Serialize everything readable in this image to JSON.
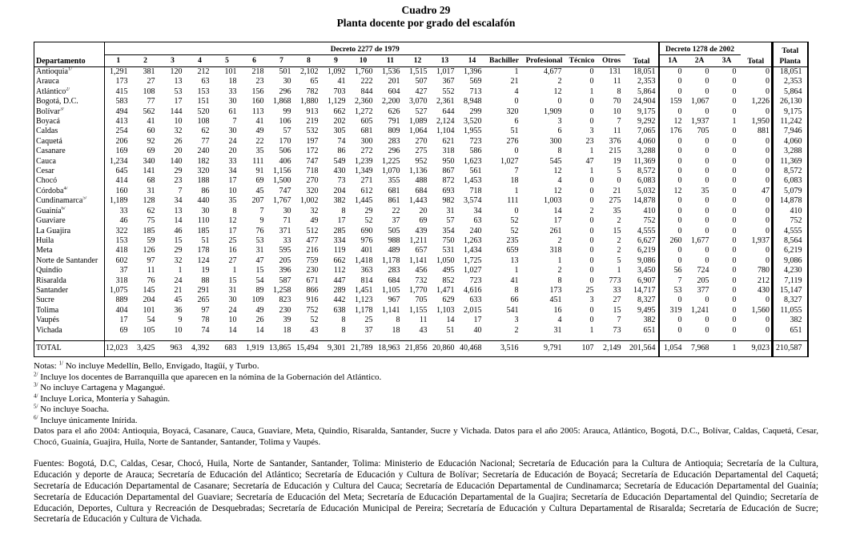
{
  "title": "Cuadro 29",
  "subtitle": "Planta docente por grado del escalafón",
  "table": {
    "group_1979": "Decreto 2277 de 1979",
    "group_2002": "Decreto 1278 de 2002",
    "headers": {
      "departamento": "Departamento",
      "total_1979": "Total",
      "total_2002": "Total",
      "total_planta_line1": "Total",
      "total_planta_line2": "Planta"
    },
    "columns_1979": [
      "1",
      "2",
      "3",
      "4",
      "5",
      "6",
      "7",
      "8",
      "9",
      "10",
      "11",
      "12",
      "13",
      "14",
      "Bachiller",
      "Profesional",
      "Técnico",
      "Otros"
    ],
    "columns_2002": [
      "1A",
      "2A",
      "3A"
    ],
    "rows": [
      {
        "name": "Antioquia",
        "sup": "1/",
        "values": [
          "1,291",
          "381",
          "120",
          "212",
          "101",
          "218",
          "501",
          "2,102",
          "1,092",
          "1,760",
          "1,536",
          "1,515",
          "1,017",
          "1,396",
          "1",
          "4,677",
          "0",
          "131",
          "18,051",
          "0",
          "0",
          "0",
          "0",
          "18,051"
        ]
      },
      {
        "name": "Arauca",
        "sup": "",
        "values": [
          "173",
          "27",
          "13",
          "63",
          "18",
          "23",
          "30",
          "65",
          "41",
          "222",
          "201",
          "507",
          "367",
          "569",
          "21",
          "2",
          "0",
          "11",
          "2,353",
          "0",
          "0",
          "0",
          "0",
          "2,353"
        ]
      },
      {
        "name": "Atlántico",
        "sup": "2/",
        "values": [
          "415",
          "108",
          "53",
          "153",
          "33",
          "156",
          "296",
          "782",
          "703",
          "844",
          "604",
          "427",
          "552",
          "713",
          "4",
          "12",
          "1",
          "8",
          "5,864",
          "0",
          "0",
          "0",
          "0",
          "5,864"
        ]
      },
      {
        "name": "Bogotá, D.C.",
        "sup": "",
        "values": [
          "583",
          "77",
          "17",
          "151",
          "30",
          "160",
          "1,868",
          "1,880",
          "1,129",
          "2,360",
          "2,200",
          "3,070",
          "2,361",
          "8,948",
          "0",
          "0",
          "0",
          "70",
          "24,904",
          "159",
          "1,067",
          "0",
          "1,226",
          "26,130"
        ]
      },
      {
        "name": "Bolívar",
        "sup": "3/",
        "values": [
          "494",
          "562",
          "144",
          "520",
          "61",
          "113",
          "99",
          "913",
          "662",
          "1,272",
          "626",
          "527",
          "644",
          "299",
          "320",
          "1,909",
          "0",
          "10",
          "9,175",
          "0",
          "0",
          "0",
          "0",
          "9,175"
        ]
      },
      {
        "name": "Boyacá",
        "sup": "",
        "values": [
          "413",
          "41",
          "10",
          "108",
          "7",
          "41",
          "106",
          "219",
          "202",
          "605",
          "791",
          "1,089",
          "2,124",
          "3,520",
          "6",
          "3",
          "0",
          "7",
          "9,292",
          "12",
          "1,937",
          "1",
          "1,950",
          "11,242"
        ]
      },
      {
        "name": "Caldas",
        "sup": "",
        "values": [
          "254",
          "60",
          "32",
          "62",
          "30",
          "49",
          "57",
          "532",
          "305",
          "681",
          "809",
          "1,064",
          "1,104",
          "1,955",
          "51",
          "6",
          "3",
          "11",
          "7,065",
          "176",
          "705",
          "0",
          "881",
          "7,946"
        ]
      },
      {
        "name": "Caquetá",
        "sup": "",
        "values": [
          "206",
          "92",
          "26",
          "77",
          "24",
          "22",
          "170",
          "197",
          "74",
          "300",
          "283",
          "270",
          "621",
          "723",
          "276",
          "300",
          "23",
          "376",
          "4,060",
          "0",
          "0",
          "0",
          "0",
          "4,060"
        ]
      },
      {
        "name": "Casanare",
        "sup": "",
        "values": [
          "169",
          "69",
          "20",
          "240",
          "20",
          "35",
          "506",
          "172",
          "86",
          "272",
          "296",
          "275",
          "318",
          "586",
          "0",
          "8",
          "1",
          "215",
          "3,288",
          "0",
          "0",
          "0",
          "0",
          "3,288"
        ]
      },
      {
        "name": "Cauca",
        "sup": "",
        "values": [
          "1,234",
          "340",
          "140",
          "182",
          "33",
          "111",
          "406",
          "747",
          "549",
          "1,239",
          "1,225",
          "952",
          "950",
          "1,623",
          "1,027",
          "545",
          "47",
          "19",
          "11,369",
          "0",
          "0",
          "0",
          "0",
          "11,369"
        ]
      },
      {
        "name": "Cesar",
        "sup": "",
        "values": [
          "645",
          "141",
          "29",
          "320",
          "34",
          "91",
          "1,156",
          "718",
          "430",
          "1,349",
          "1,070",
          "1,136",
          "867",
          "561",
          "7",
          "12",
          "1",
          "5",
          "8,572",
          "0",
          "0",
          "0",
          "0",
          "8,572"
        ]
      },
      {
        "name": "Chocó",
        "sup": "",
        "values": [
          "414",
          "68",
          "23",
          "188",
          "17",
          "69",
          "1,500",
          "270",
          "73",
          "271",
          "355",
          "488",
          "872",
          "1,453",
          "18",
          "4",
          "0",
          "0",
          "6,083",
          "0",
          "0",
          "0",
          "0",
          "6,083"
        ]
      },
      {
        "name": "Córdoba",
        "sup": "4/",
        "values": [
          "160",
          "31",
          "7",
          "86",
          "10",
          "45",
          "747",
          "320",
          "204",
          "612",
          "681",
          "684",
          "693",
          "718",
          "1",
          "12",
          "0",
          "21",
          "5,032",
          "12",
          "35",
          "0",
          "47",
          "5,079"
        ]
      },
      {
        "name": "Cundinamarca",
        "sup": "5/",
        "values": [
          "1,189",
          "128",
          "34",
          "440",
          "35",
          "207",
          "1,767",
          "1,002",
          "382",
          "1,445",
          "861",
          "1,443",
          "982",
          "3,574",
          "111",
          "1,003",
          "0",
          "275",
          "14,878",
          "0",
          "0",
          "0",
          "0",
          "14,878"
        ]
      },
      {
        "name": "Guainía",
        "sup": "6/",
        "values": [
          "33",
          "62",
          "13",
          "30",
          "8",
          "7",
          "30",
          "32",
          "8",
          "29",
          "22",
          "20",
          "31",
          "34",
          "0",
          "14",
          "2",
          "35",
          "410",
          "0",
          "0",
          "0",
          "0",
          "410"
        ]
      },
      {
        "name": "Guaviare",
        "sup": "",
        "values": [
          "46",
          "75",
          "14",
          "110",
          "12",
          "9",
          "71",
          "49",
          "17",
          "52",
          "37",
          "69",
          "57",
          "63",
          "52",
          "17",
          "0",
          "2",
          "752",
          "0",
          "0",
          "0",
          "0",
          "752"
        ]
      },
      {
        "name": "La Guajira",
        "sup": "",
        "values": [
          "322",
          "185",
          "46",
          "185",
          "17",
          "76",
          "371",
          "512",
          "285",
          "690",
          "505",
          "439",
          "354",
          "240",
          "52",
          "261",
          "0",
          "15",
          "4,555",
          "0",
          "0",
          "0",
          "0",
          "4,555"
        ]
      },
      {
        "name": "Huila",
        "sup": "",
        "values": [
          "153",
          "59",
          "15",
          "51",
          "25",
          "53",
          "33",
          "477",
          "334",
          "976",
          "988",
          "1,211",
          "750",
          "1,263",
          "235",
          "2",
          "0",
          "2",
          "6,627",
          "260",
          "1,677",
          "0",
          "1,937",
          "8,564"
        ]
      },
      {
        "name": "Meta",
        "sup": "",
        "values": [
          "418",
          "126",
          "29",
          "178",
          "16",
          "31",
          "595",
          "216",
          "119",
          "401",
          "489",
          "657",
          "531",
          "1,434",
          "659",
          "318",
          "0",
          "2",
          "6,219",
          "0",
          "0",
          "0",
          "0",
          "6,219"
        ]
      },
      {
        "name": "Norte de Santander",
        "sup": "",
        "values": [
          "602",
          "97",
          "32",
          "124",
          "27",
          "47",
          "205",
          "759",
          "662",
          "1,418",
          "1,178",
          "1,141",
          "1,050",
          "1,725",
          "13",
          "1",
          "0",
          "5",
          "9,086",
          "0",
          "0",
          "0",
          "0",
          "9,086"
        ]
      },
      {
        "name": "Quindío",
        "sup": "",
        "values": [
          "37",
          "11",
          "1",
          "19",
          "1",
          "15",
          "396",
          "230",
          "112",
          "363",
          "283",
          "456",
          "495",
          "1,027",
          "1",
          "2",
          "0",
          "1",
          "3,450",
          "56",
          "724",
          "0",
          "780",
          "4,230"
        ]
      },
      {
        "name": "Risaralda",
        "sup": "",
        "values": [
          "318",
          "76",
          "24",
          "88",
          "15",
          "54",
          "587",
          "671",
          "447",
          "814",
          "684",
          "732",
          "852",
          "723",
          "41",
          "8",
          "0",
          "773",
          "6,907",
          "7",
          "205",
          "0",
          "212",
          "7,119"
        ]
      },
      {
        "name": "Santander",
        "sup": "",
        "values": [
          "1,075",
          "145",
          "21",
          "291",
          "31",
          "89",
          "1,258",
          "866",
          "289",
          "1,451",
          "1,105",
          "1,770",
          "1,471",
          "4,616",
          "8",
          "173",
          "25",
          "33",
          "14,717",
          "53",
          "377",
          "0",
          "430",
          "15,147"
        ]
      },
      {
        "name": "Sucre",
        "sup": "",
        "values": [
          "889",
          "204",
          "45",
          "265",
          "30",
          "109",
          "823",
          "916",
          "442",
          "1,123",
          "967",
          "705",
          "629",
          "633",
          "66",
          "451",
          "3",
          "27",
          "8,327",
          "0",
          "0",
          "0",
          "0",
          "8,327"
        ]
      },
      {
        "name": "Tolima",
        "sup": "",
        "values": [
          "404",
          "101",
          "36",
          "97",
          "24",
          "49",
          "230",
          "752",
          "638",
          "1,178",
          "1,141",
          "1,155",
          "1,103",
          "2,015",
          "541",
          "16",
          "0",
          "15",
          "9,495",
          "319",
          "1,241",
          "0",
          "1,560",
          "11,055"
        ]
      },
      {
        "name": "Vaupés",
        "sup": "",
        "values": [
          "17",
          "54",
          "9",
          "78",
          "10",
          "26",
          "39",
          "52",
          "8",
          "25",
          "8",
          "11",
          "14",
          "17",
          "3",
          "4",
          "0",
          "7",
          "382",
          "0",
          "0",
          "0",
          "0",
          "382"
        ]
      },
      {
        "name": "Vichada",
        "sup": "",
        "values": [
          "69",
          "105",
          "10",
          "74",
          "14",
          "14",
          "18",
          "43",
          "8",
          "37",
          "18",
          "43",
          "51",
          "40",
          "2",
          "31",
          "1",
          "73",
          "651",
          "0",
          "0",
          "0",
          "0",
          "651"
        ]
      }
    ],
    "total_row": {
      "name": "TOTAL",
      "values": [
        "12,023",
        "3,425",
        "963",
        "4,392",
        "683",
        "1,919",
        "13,865",
        "15,494",
        "9,301",
        "21,789",
        "18,963",
        "21,856",
        "20,860",
        "40,468",
        "3,516",
        "9,791",
        "107",
        "2,149",
        "201,564",
        "1,054",
        "7,968",
        "1",
        "9,023",
        "210,587"
      ]
    }
  },
  "notes": {
    "label": "Notas:",
    "items": [
      {
        "sup": "1/",
        "text": "No incluye Medellín, Bello, Envigado, Itagüí, y Turbo."
      },
      {
        "sup": "2/",
        "text": "Incluye los docentes de Barranquilla que aparecen en la nómina de la Gobernación del Atlántico."
      },
      {
        "sup": "3/",
        "text": "No incluye Cartagena y Magangué."
      },
      {
        "sup": "4/",
        "text": "Incluye Lorica, Montería y Sahagún."
      },
      {
        "sup": "5/",
        "text": "No incluye Soacha."
      },
      {
        "sup": "6/",
        "text": "Incluye únicamente Inírida."
      }
    ],
    "datos": "Datos para el año 2004: Antioquia, Boyacá, Casanare, Cauca, Guaviare, Meta, Quindio, Risaralda, Santander,  Sucre y Vichada. Datos para el año 2005: Arauca, Atlántico, Bogotá, D.C., Bolívar, Caldas, Caquetá, Cesar, Chocó, Guainía, Guajira, Huila, Norte de Santander, Santander, Tolima y Vaupés."
  },
  "fuentes": "Fuentes: Bogotá, D.C, Caldas, Cesar, Chocó, Huila, Norte de Santander, Santander, Tolima: Ministerio de Educación Nacional; Secretaría de Educación para la Cultura de Antioquia; Secretaría de la Cultura, Educación y deporte de Arauca; Secretaría de Educación del Atlántico; Secretaría de Educación y Cultura de Bolívar; Secretaría de Educación de Boyacá; Secretaría de Educación Departamental del Caquetá; Secretaría de Educación Departamental de Casanare; Secretaría de Educación y Cultura del Cauca; Secretaría de Educación Departamental de Cundinamarca; Secretaría de Educación Departamental del Guainía; Secretaría de Educación Departamental del Guaviare; Secretaría de Educación del Meta; Secretaría de Educación Departamental de la Guajira; Secretaría de Educación Departamental del Quindio; Secretaría de Educación, Deportes, Cultura y Recreación de Desquebradas; Secretaría de Educación Municipal de Pereira; Secretaría de Educación y Cultura Departamental de Risaralda; Secretaría de Educación de Sucre; Secretaría de Educación y Cultura de Vichada."
}
